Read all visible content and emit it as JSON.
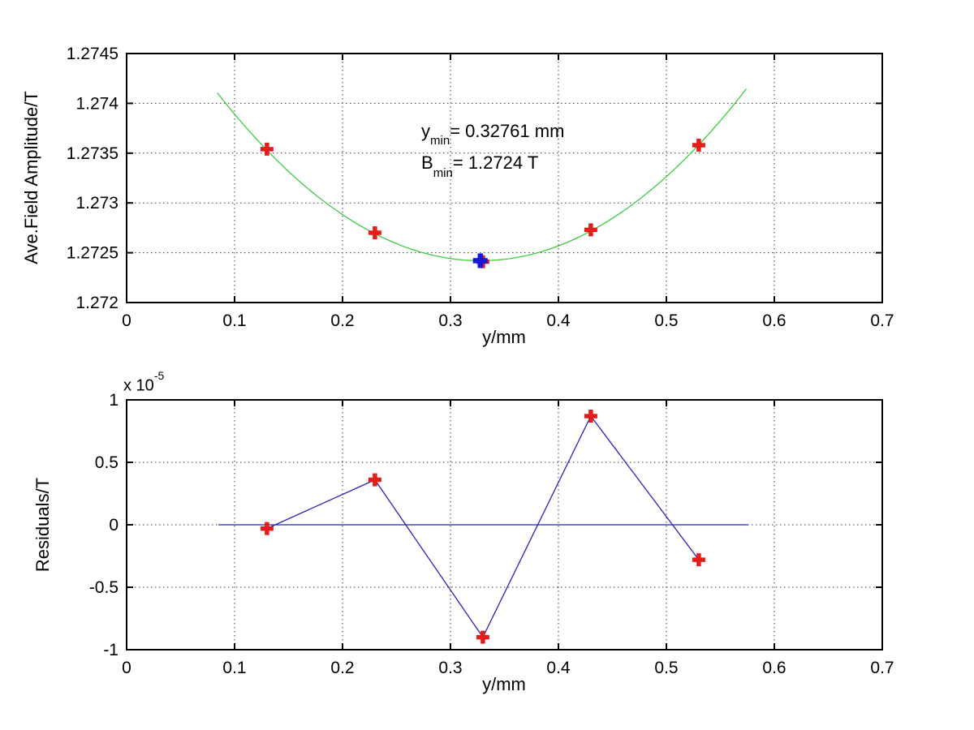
{
  "figure": {
    "background": "#ffffff"
  },
  "axis_style": {
    "frame_color": "#000000",
    "grid_color": "#3a3a3a"
  },
  "chart_data": [
    {
      "type": "scatter",
      "title": "",
      "xlabel": "y/mm",
      "ylabel": "Ave.Field Amplitude/T",
      "xlim": [
        0,
        0.7
      ],
      "ylim": [
        1.272,
        1.2745
      ],
      "grid": true,
      "legend": null,
      "xticks": {
        "values": [
          0,
          0.1,
          0.2,
          0.3,
          0.4,
          0.5,
          0.6,
          0.7
        ],
        "labels": [
          "0",
          "0.1",
          "0.2",
          "0.3",
          "0.4",
          "0.5",
          "0.6",
          "0.7"
        ]
      },
      "yticks": {
        "values": [
          1.272,
          1.2725,
          1.273,
          1.2735,
          1.274,
          1.2745
        ],
        "labels": [
          "1.272",
          "1.2725",
          "1.273",
          "1.2735",
          "1.274",
          "1.2745"
        ]
      },
      "data_points": {
        "marker": "plus",
        "color": "#e31c1c",
        "x": [
          0.13,
          0.23,
          0.33,
          0.43,
          0.53
        ],
        "y": [
          1.27354,
          1.2727,
          1.27241,
          1.27273,
          1.27358
        ]
      },
      "fit_curve": {
        "shape": "parabola",
        "vertex_x": 0.32761,
        "vertex_y": 1.27242,
        "coeff": 0.0284,
        "x_start": 0.084,
        "x_end": 0.574,
        "color": "#3ecc3e"
      },
      "min_marker": {
        "marker": "plus",
        "x": 0.32761,
        "y": 1.27242,
        "color": "#1717d6"
      },
      "annotation": {
        "line1": {
          "base": "y",
          "sub": "min",
          "rest": "= 0.32761 mm"
        },
        "line2": {
          "base": "B",
          "sub": "min",
          "rest": "= 1.2724 T"
        }
      }
    },
    {
      "type": "line",
      "title": "",
      "xlabel": "y/mm",
      "ylabel": "Residuals/T",
      "multiplier": {
        "base": "x 10",
        "exp": "-5"
      },
      "xlim": [
        0,
        0.7
      ],
      "ylim_e5": [
        -1,
        1
      ],
      "grid": true,
      "legend": null,
      "xticks": {
        "values": [
          0,
          0.1,
          0.2,
          0.3,
          0.4,
          0.5,
          0.6,
          0.7
        ],
        "labels": [
          "0",
          "0.1",
          "0.2",
          "0.3",
          "0.4",
          "0.5",
          "0.6",
          "0.7"
        ]
      },
      "yticks": {
        "values": [
          -1,
          -0.5,
          0,
          0.5,
          1
        ],
        "labels": [
          "-1",
          "-0.5",
          "0",
          "0.5",
          "1"
        ]
      },
      "series": {
        "marker": "plus",
        "marker_color": "#e31c1c",
        "line_color": "#2525b0",
        "x": [
          0.13,
          0.23,
          0.33,
          0.43,
          0.53
        ],
        "y_e5": [
          -0.03,
          0.36,
          -0.9,
          0.87,
          -0.28
        ]
      },
      "zero_line": {
        "y": 0,
        "x_start": 0.085,
        "x_end": 0.576,
        "color": "#2525b0"
      }
    }
  ]
}
